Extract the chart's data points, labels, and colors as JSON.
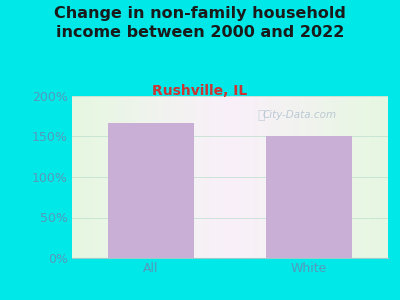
{
  "title": "Change in non-family household\nincome between 2000 and 2022",
  "subtitle": "Rushville, IL",
  "categories": [
    "All",
    "White"
  ],
  "values": [
    167,
    150
  ],
  "bar_color": "#c9aed6",
  "figure_bg_color": "#00e8e8",
  "plot_bg_color": "#eaf5e4",
  "ylim": [
    0,
    200
  ],
  "yticks": [
    0,
    50,
    100,
    150,
    200
  ],
  "ytick_labels": [
    "0%",
    "50%",
    "100%",
    "150%",
    "200%"
  ],
  "title_fontsize": 11.5,
  "subtitle_fontsize": 10,
  "tick_fontsize": 9,
  "title_color": "#1a1a1a",
  "subtitle_color": "#cc3333",
  "tick_color": "#5599bb",
  "watermark": "City-Data.com"
}
